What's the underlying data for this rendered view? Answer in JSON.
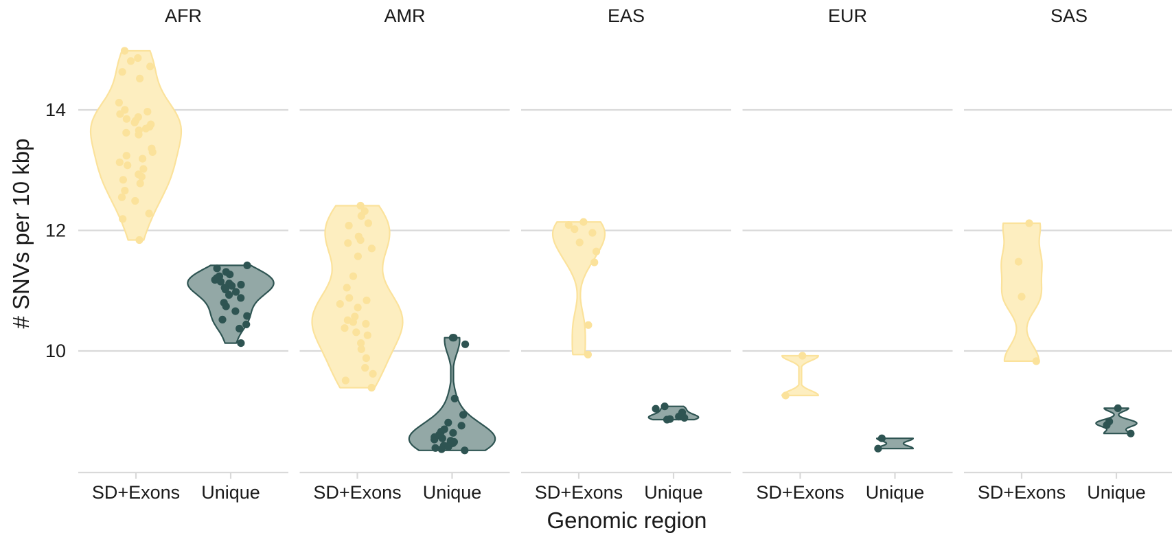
{
  "chart_data": {
    "type": "violin",
    "xlabel": "Genomic region",
    "ylabel": "# SNVs per 10 kbp",
    "ylim": [
      8.1,
      15.1
    ],
    "yticks": [
      10,
      12,
      14
    ],
    "grid": true,
    "categories": [
      "SD+Exons",
      "Unique"
    ],
    "colors": {
      "SD+Exons": {
        "fill": "#fdeec0",
        "stroke": "#fbe29b",
        "point": "#fbe29b"
      },
      "Unique": {
        "fill": "#93a8a6",
        "stroke": "#2e5452",
        "point": "#2e5452"
      }
    },
    "facets": [
      {
        "name": "AFR",
        "groups": {
          "SD+Exons": [
            14.98,
            14.86,
            14.81,
            14.72,
            14.63,
            14.52,
            14.12,
            14.0,
            13.97,
            13.93,
            13.88,
            13.85,
            13.82,
            13.79,
            13.76,
            13.72,
            13.69,
            13.66,
            13.62,
            13.59,
            13.36,
            13.3,
            13.24,
            13.19,
            13.13,
            13.08,
            13.02,
            12.93,
            12.89,
            12.84,
            12.78,
            12.66,
            12.55,
            12.49,
            12.28,
            12.19,
            11.84
          ],
          "Unique": [
            11.42,
            11.37,
            11.31,
            11.27,
            11.24,
            11.21,
            11.18,
            11.15,
            11.12,
            11.1,
            11.08,
            11.05,
            11.02,
            10.98,
            10.93,
            10.88,
            10.8,
            10.74,
            10.66,
            10.58,
            10.52,
            10.44,
            10.37,
            10.13
          ]
        }
      },
      {
        "name": "AMR",
        "groups": {
          "SD+Exons": [
            12.41,
            12.32,
            12.24,
            12.12,
            12.08,
            11.9,
            11.84,
            11.79,
            11.7,
            11.57,
            11.24,
            11.05,
            10.88,
            10.84,
            10.78,
            10.72,
            10.57,
            10.51,
            10.48,
            10.45,
            10.38,
            10.31,
            10.26,
            10.13,
            10.03,
            9.88,
            9.72,
            9.62,
            9.51,
            9.39
          ],
          "Unique": [
            10.22,
            10.22,
            10.11,
            9.21,
            8.94,
            8.81,
            8.76,
            8.7,
            8.66,
            8.64,
            8.61,
            8.59,
            8.57,
            8.55,
            8.53,
            8.51,
            8.49,
            8.47,
            8.45,
            8.43,
            8.41,
            8.39,
            8.37,
            8.35
          ]
        }
      },
      {
        "name": "EAS",
        "groups": {
          "SD+Exons": [
            12.14,
            12.09,
            12.02,
            11.96,
            11.8,
            11.65,
            11.47,
            10.43,
            9.94
          ],
          "Unique": [
            9.08,
            9.04,
            8.98,
            8.93,
            8.91,
            8.89,
            8.87,
            8.86
          ]
        }
      },
      {
        "name": "EUR",
        "groups": {
          "SD+Exons": [
            9.92,
            9.26
          ],
          "Unique": [
            8.55,
            8.38
          ]
        }
      },
      {
        "name": "SAS",
        "groups": {
          "SD+Exons": [
            12.12,
            11.48,
            10.9,
            9.83
          ],
          "Unique": [
            9.05,
            8.83,
            8.77,
            8.63
          ]
        }
      }
    ]
  }
}
